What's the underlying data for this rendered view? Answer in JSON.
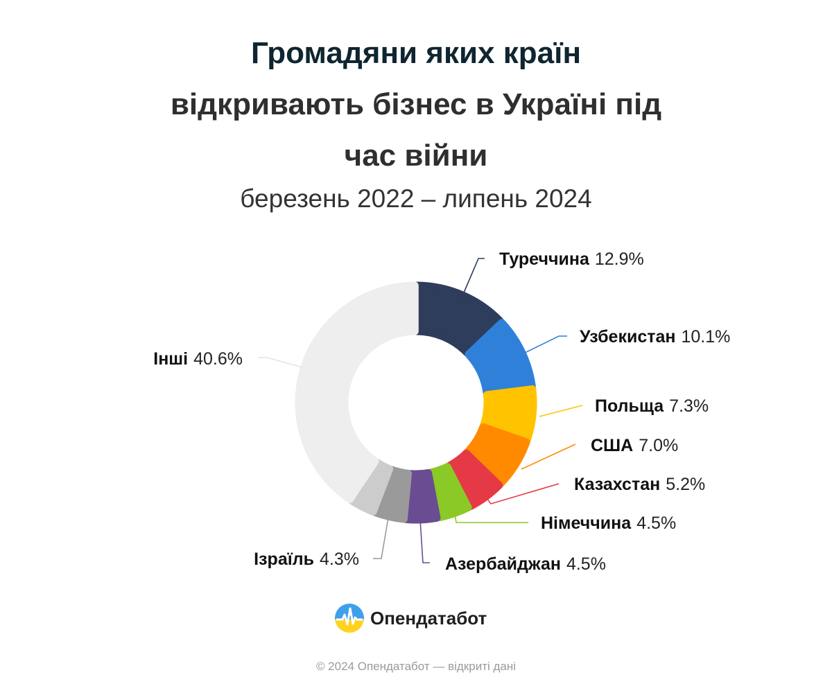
{
  "title_lines": [
    "Громадяни яких країн",
    "відкривають бізнес в Україні під",
    "час війни"
  ],
  "subtitle": "березень 2022 – липень 2024",
  "chart_data": {
    "type": "pie",
    "variant": "donut",
    "title": "Громадяни яких країн відкривають бізнес в Україні під час війни",
    "subtitle": "березень 2022 – липень 2024",
    "unit": "%",
    "slices": [
      {
        "name": "Туреччина",
        "value": 12.9,
        "value_label": "12.9%",
        "color": "#2e3d5c"
      },
      {
        "name": "Узбекистан",
        "value": 10.1,
        "value_label": "10.1%",
        "color": "#2f80d9"
      },
      {
        "name": "Польща",
        "value": 7.3,
        "value_label": "7.3%",
        "color": "#ffc300"
      },
      {
        "name": "США",
        "value": 7.0,
        "value_label": "7.0%",
        "color": "#ff8a00"
      },
      {
        "name": "Казахстан",
        "value": 5.2,
        "value_label": "5.2%",
        "color": "#e63946"
      },
      {
        "name": "Німеччина",
        "value": 4.5,
        "value_label": "4.5%",
        "color": "#8bc926"
      },
      {
        "name": "Азербайджан",
        "value": 4.5,
        "value_label": "4.5%",
        "color": "#6a4c93"
      },
      {
        "name": "Ізраїль",
        "value": 4.3,
        "value_label": "4.3%",
        "color": "#9a9a9a"
      },
      {
        "name": "",
        "value": 3.6,
        "value_label": "",
        "color": "#cccccc"
      },
      {
        "name": "Інші",
        "value": 40.6,
        "value_label": "40.6%",
        "color": "#eeeeee"
      }
    ]
  },
  "logo_text": "Опендатабот",
  "copyright": "© 2024 Опендатабот — відкриті дані"
}
